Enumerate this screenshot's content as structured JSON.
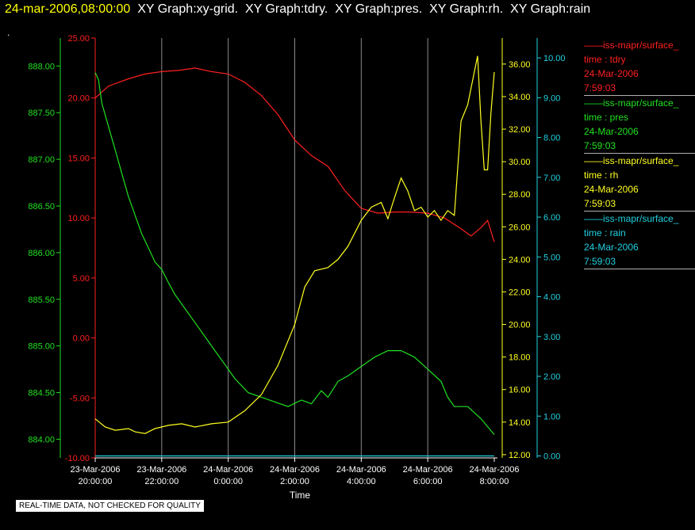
{
  "title": {
    "date": "24-mar-2006,08:00:00",
    "rest": "  XY Graph:xy-grid.  XY Graph:tdry.  XY Graph:pres.  XY Graph:rh.  XY Graph:rain"
  },
  "dot": ".",
  "disclaimer": "REAL-TIME DATA, NOT CHECKED FOR QUALITY",
  "legend": [
    {
      "color": "#ff2020",
      "lines": [
        "——iss-mapr/surface_",
        "time : tdry",
        "24-Mar-2006",
        "7:59:03"
      ]
    },
    {
      "color": "#20e020",
      "lines": [
        "——iss-mapr/surface_",
        "time : pres",
        "24-Mar-2006",
        "7:59:03"
      ]
    },
    {
      "color": "#ffff20",
      "lines": [
        "——iss-mapr/surface_",
        "time : rh",
        "24-Mar-2006",
        "7:59:03"
      ]
    },
    {
      "color": "#20d0e0",
      "lines": [
        "——iss-mapr/surface_",
        "time : rain",
        "24-Mar-2006",
        "7:59:03"
      ]
    }
  ],
  "chart_data": {
    "type": "line",
    "xlabel": "Time",
    "x_ticks": [
      {
        "t": 0,
        "l1": "23-Mar-2006",
        "l2": "20:00:00"
      },
      {
        "t": 2,
        "l1": "23-Mar-2006",
        "l2": "22:00:00"
      },
      {
        "t": 4,
        "l1": "24-Mar-2006",
        "l2": "0:00:00"
      },
      {
        "t": 6,
        "l1": "24-Mar-2006",
        "l2": "2:00:00"
      },
      {
        "t": 8,
        "l1": "24-Mar-2006",
        "l2": "4:00:00"
      },
      {
        "t": 10,
        "l1": "24-Mar-2006",
        "l2": "6:00:00"
      },
      {
        "t": 12,
        "l1": "24-Mar-2006",
        "l2": "8:00:00"
      }
    ],
    "grid": "vertical",
    "axes": {
      "pres": {
        "color": "#20e020",
        "min": 883.8,
        "max": 888.3,
        "ticks": [
          "884.00",
          "884.50",
          "885.00",
          "885.50",
          "886.00",
          "886.50",
          "887.00",
          "887.50",
          "888.00"
        ]
      },
      "tdry": {
        "color": "#ff2020",
        "min": -10,
        "max": 25,
        "ticks": [
          "-10.00",
          "-5.00",
          "0.00",
          "5.00",
          "10.00",
          "15.00",
          "20.00",
          "25.00"
        ]
      },
      "rh": {
        "color": "#ffff20",
        "min": 11.8,
        "max": 37.6,
        "ticks": [
          "12.00",
          "14.00",
          "16.00",
          "18.00",
          "20.00",
          "22.00",
          "24.00",
          "26.00",
          "28.00",
          "30.00",
          "32.00",
          "34.00",
          "36.00"
        ]
      },
      "rain": {
        "color": "#20d0e0",
        "min": -0.05,
        "max": 10.5,
        "ticks": [
          "0.00",
          "1.00",
          "2.00",
          "3.00",
          "4.00",
          "5.00",
          "6.00",
          "7.00",
          "8.00",
          "9.00",
          "10.00"
        ]
      }
    },
    "series": [
      {
        "key": "tdry",
        "color": "#ff2020",
        "points": [
          [
            0,
            20.0
          ],
          [
            0.4,
            21.0
          ],
          [
            1,
            21.6
          ],
          [
            1.5,
            22.0
          ],
          [
            2,
            22.2
          ],
          [
            2.5,
            22.3
          ],
          [
            3,
            22.5
          ],
          [
            3.5,
            22.2
          ],
          [
            4,
            22.0
          ],
          [
            4.5,
            21.3
          ],
          [
            5,
            20.2
          ],
          [
            5.5,
            18.6
          ],
          [
            6,
            16.5
          ],
          [
            6.5,
            15.2
          ],
          [
            7,
            14.3
          ],
          [
            7.5,
            12.3
          ],
          [
            8,
            10.8
          ],
          [
            8.5,
            10.4
          ],
          [
            9,
            10.5
          ],
          [
            9.5,
            10.5
          ],
          [
            10,
            10.4
          ],
          [
            10.5,
            10.0
          ],
          [
            11,
            9.1
          ],
          [
            11.3,
            8.5
          ],
          [
            11.6,
            9.2
          ],
          [
            11.8,
            9.8
          ],
          [
            12,
            8.0
          ]
        ]
      },
      {
        "key": "pres",
        "color": "#20e020",
        "points": [
          [
            0,
            887.93
          ],
          [
            0.1,
            887.85
          ],
          [
            0.2,
            887.6
          ],
          [
            0.4,
            887.35
          ],
          [
            0.6,
            887.1
          ],
          [
            0.8,
            886.85
          ],
          [
            1,
            886.6
          ],
          [
            1.2,
            886.4
          ],
          [
            1.4,
            886.2
          ],
          [
            1.6,
            886.05
          ],
          [
            1.8,
            885.9
          ],
          [
            2,
            885.82
          ],
          [
            2.2,
            885.68
          ],
          [
            2.4,
            885.55
          ],
          [
            2.7,
            885.4
          ],
          [
            3,
            885.25
          ],
          [
            3.3,
            885.1
          ],
          [
            3.6,
            884.95
          ],
          [
            3.9,
            884.8
          ],
          [
            4.2,
            884.65
          ],
          [
            4.6,
            884.5
          ],
          [
            5,
            884.45
          ],
          [
            5.4,
            884.4
          ],
          [
            5.8,
            884.35
          ],
          [
            6.2,
            884.42
          ],
          [
            6.5,
            884.38
          ],
          [
            6.8,
            884.52
          ],
          [
            7.0,
            884.45
          ],
          [
            7.3,
            884.62
          ],
          [
            7.6,
            884.68
          ],
          [
            8,
            884.78
          ],
          [
            8.4,
            884.88
          ],
          [
            8.8,
            884.95
          ],
          [
            9.2,
            884.95
          ],
          [
            9.6,
            884.88
          ],
          [
            10,
            884.75
          ],
          [
            10.4,
            884.62
          ],
          [
            10.6,
            884.45
          ],
          [
            10.8,
            884.35
          ],
          [
            11.2,
            884.35
          ],
          [
            11.6,
            884.22
          ],
          [
            12,
            884.05
          ]
        ]
      },
      {
        "key": "rh",
        "color": "#ffff20",
        "points": [
          [
            0,
            14.2
          ],
          [
            0.3,
            13.7
          ],
          [
            0.6,
            13.5
          ],
          [
            1,
            13.6
          ],
          [
            1.2,
            13.4
          ],
          [
            1.5,
            13.3
          ],
          [
            1.8,
            13.6
          ],
          [
            2.2,
            13.8
          ],
          [
            2.6,
            13.9
          ],
          [
            3,
            13.7
          ],
          [
            3.5,
            13.9
          ],
          [
            4,
            14.0
          ],
          [
            4.5,
            14.7
          ],
          [
            5,
            15.7
          ],
          [
            5.5,
            17.5
          ],
          [
            6,
            20.0
          ],
          [
            6.3,
            22.3
          ],
          [
            6.6,
            23.3
          ],
          [
            7,
            23.5
          ],
          [
            7.3,
            24.0
          ],
          [
            7.6,
            24.8
          ],
          [
            8,
            26.4
          ],
          [
            8.3,
            27.2
          ],
          [
            8.6,
            27.5
          ],
          [
            8.8,
            26.5
          ],
          [
            9,
            27.8
          ],
          [
            9.2,
            29.0
          ],
          [
            9.4,
            28.2
          ],
          [
            9.6,
            27.0
          ],
          [
            9.8,
            27.2
          ],
          [
            10,
            26.6
          ],
          [
            10.2,
            27.0
          ],
          [
            10.4,
            26.4
          ],
          [
            10.6,
            27.0
          ],
          [
            10.8,
            26.7
          ],
          [
            11,
            32.5
          ],
          [
            11.2,
            33.5
          ],
          [
            11.4,
            35.5
          ],
          [
            11.5,
            36.5
          ],
          [
            11.6,
            32.5
          ],
          [
            11.7,
            29.5
          ],
          [
            11.8,
            29.5
          ],
          [
            11.9,
            33.0
          ],
          [
            12,
            35.5
          ]
        ]
      },
      {
        "key": "rain",
        "color": "#20d0e0",
        "points": [
          [
            0,
            0.0
          ],
          [
            12,
            0.0
          ]
        ]
      }
    ]
  }
}
